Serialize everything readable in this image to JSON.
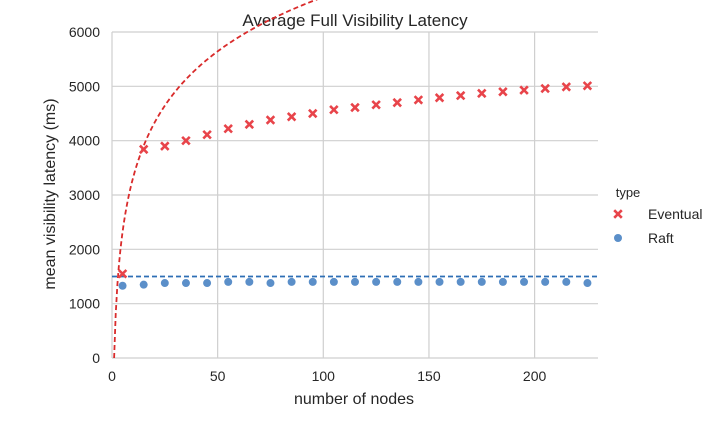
{
  "chart_data": {
    "type": "scatter",
    "title": "Average Full Visibility Latency",
    "xlabel": "number of nodes",
    "ylabel": "mean visibility latency (ms)",
    "xlim": [
      0,
      230
    ],
    "ylim": [
      0,
      6000
    ],
    "xticks": [
      0,
      50,
      100,
      150,
      200
    ],
    "yticks": [
      0,
      1000,
      2000,
      3000,
      4000,
      5000,
      6000
    ],
    "grid": true,
    "legend": {
      "title": "type",
      "placement": "right"
    },
    "series": [
      {
        "name": "Eventual",
        "marker": "x",
        "color": "#e8444a",
        "x": [
          5,
          15,
          25,
          35,
          45,
          55,
          65,
          75,
          85,
          95,
          105,
          115,
          125,
          135,
          145,
          155,
          165,
          175,
          185,
          195,
          205,
          215,
          225
        ],
        "y": [
          1550,
          3840,
          3900,
          4000,
          4110,
          4220,
          4300,
          4380,
          4440,
          4500,
          4570,
          4610,
          4660,
          4700,
          4750,
          4790,
          4830,
          4870,
          4900,
          4930,
          4960,
          4990,
          5010
        ]
      },
      {
        "name": "Raft",
        "marker": "o",
        "color": "#5b8fc9",
        "x": [
          5,
          15,
          25,
          35,
          45,
          55,
          65,
          75,
          85,
          95,
          105,
          115,
          125,
          135,
          145,
          155,
          165,
          175,
          185,
          195,
          205,
          215,
          225
        ],
        "y": [
          1330,
          1350,
          1380,
          1380,
          1380,
          1400,
          1400,
          1380,
          1400,
          1400,
          1400,
          1400,
          1400,
          1400,
          1400,
          1400,
          1400,
          1400,
          1400,
          1400,
          1400,
          1400,
          1380
        ]
      }
    ],
    "reference_lines": [
      {
        "kind": "log-curve",
        "style": "dashed",
        "color": "#d92b2b",
        "a": 1000,
        "base": 2,
        "x_start": 1,
        "x_end": 230
      },
      {
        "kind": "horizontal",
        "style": "dashed",
        "color": "#2e6fb5",
        "y": 1500
      }
    ]
  }
}
